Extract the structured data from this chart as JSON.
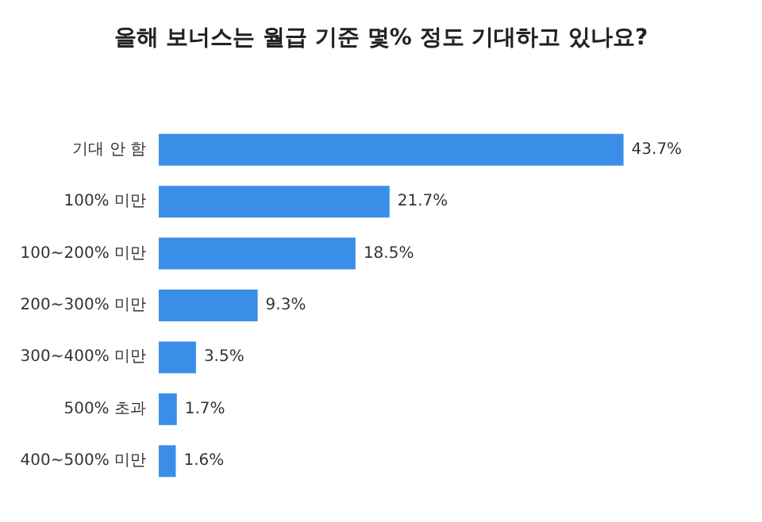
{
  "chart_data": {
    "type": "bar",
    "orientation": "horizontal",
    "title": "올해 보너스는 월급 기준 몇% 정도 기대하고 있나요?",
    "categories": [
      "기대 안 함",
      "100% 미만",
      "100~200% 미만",
      "200~300% 미만",
      "300~400% 미만",
      "500% 초과",
      "400~500% 미만"
    ],
    "values": [
      43.7,
      21.7,
      18.5,
      9.3,
      3.5,
      1.7,
      1.6
    ],
    "color": "#3b8ee8",
    "value_labels": [
      "43.7%",
      "21.7%",
      "18.5%",
      "9.3%",
      "3.5%",
      "1.7%",
      "1.6%"
    ]
  }
}
